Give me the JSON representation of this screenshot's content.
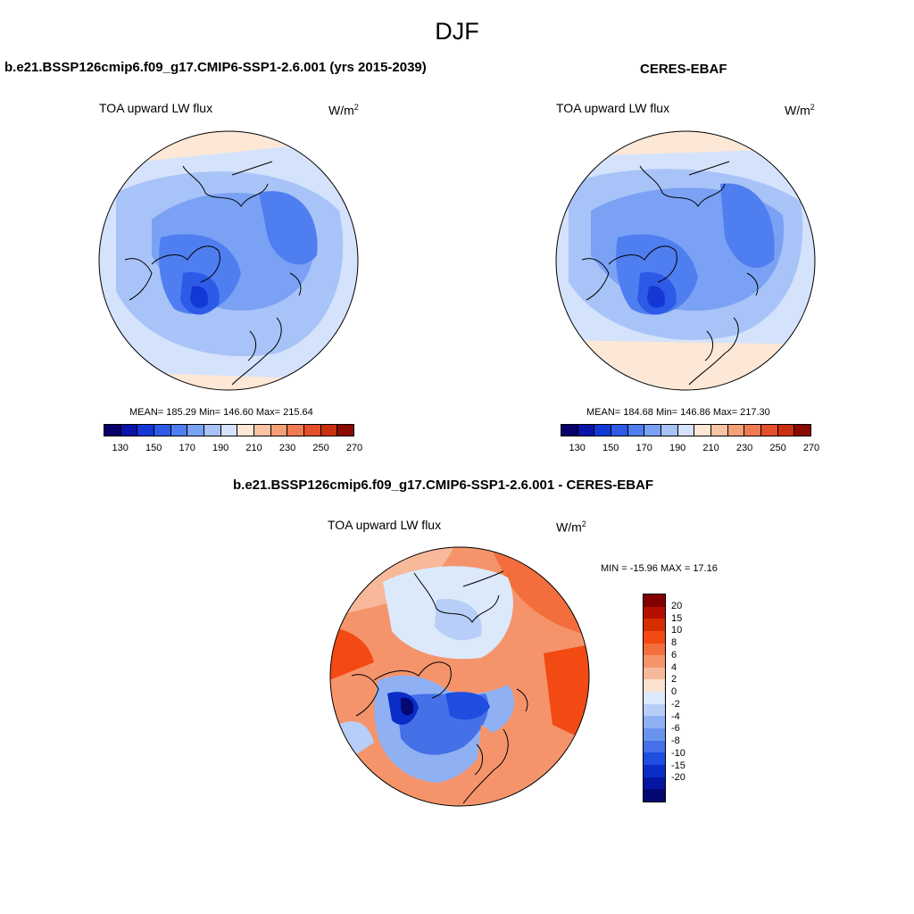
{
  "season": "DJF",
  "panels": [
    {
      "title": "b.e21.BSSP126cmip6.f09_g17.CMIP6-SSP1-2.6.001 (yrs 2015-2039)",
      "variable": "TOA upward LW flux",
      "units": "W/m",
      "units_exp": "2",
      "stats": "MEAN= 185.29  Min= 146.60  Max= 215.64"
    },
    {
      "title": "CERES-EBAF",
      "variable": "TOA upward LW flux",
      "units": "W/m",
      "units_exp": "2",
      "stats": "MEAN= 184.68  Min= 146.86  Max= 217.30"
    },
    {
      "title": "b.e21.BSSP126cmip6.f09_g17.CMIP6-SSP1-2.6.001 - CERES-EBAF",
      "variable": "TOA upward LW flux",
      "units": "W/m",
      "units_exp": "2",
      "stats": "MIN = -15.96 MAX =  17.16"
    }
  ],
  "abs_colorbar": {
    "colors": [
      "#08006b",
      "#0a14a8",
      "#1338d6",
      "#2e5ae8",
      "#4f7ef0",
      "#7aa1f3",
      "#a8c3f7",
      "#d4e3fb",
      "#fde7d6",
      "#f9c3a4",
      "#f59f79",
      "#f07a52",
      "#e5502c",
      "#c9300f",
      "#8a0a00"
    ],
    "tick_labels": [
      "130",
      "150",
      "170",
      "190",
      "210",
      "230",
      "250",
      "270"
    ]
  },
  "diff_colorbar": {
    "colors": [
      "#830000",
      "#b50f00",
      "#d62d00",
      "#f24a12",
      "#f36e3c",
      "#f5946b",
      "#f7b99a",
      "#fbe1cf",
      "#dce9fb",
      "#b7cef8",
      "#8fb1f4",
      "#6a92ef",
      "#4570e8",
      "#1f4ddf",
      "#0b2dc7",
      "#0515a0",
      "#030873"
    ],
    "tick_labels": [
      "20",
      "15",
      "10",
      "8",
      "6",
      "4",
      "2",
      "0",
      "-2",
      "-4",
      "-6",
      "-8",
      "-10",
      "-15",
      "-20"
    ]
  }
}
